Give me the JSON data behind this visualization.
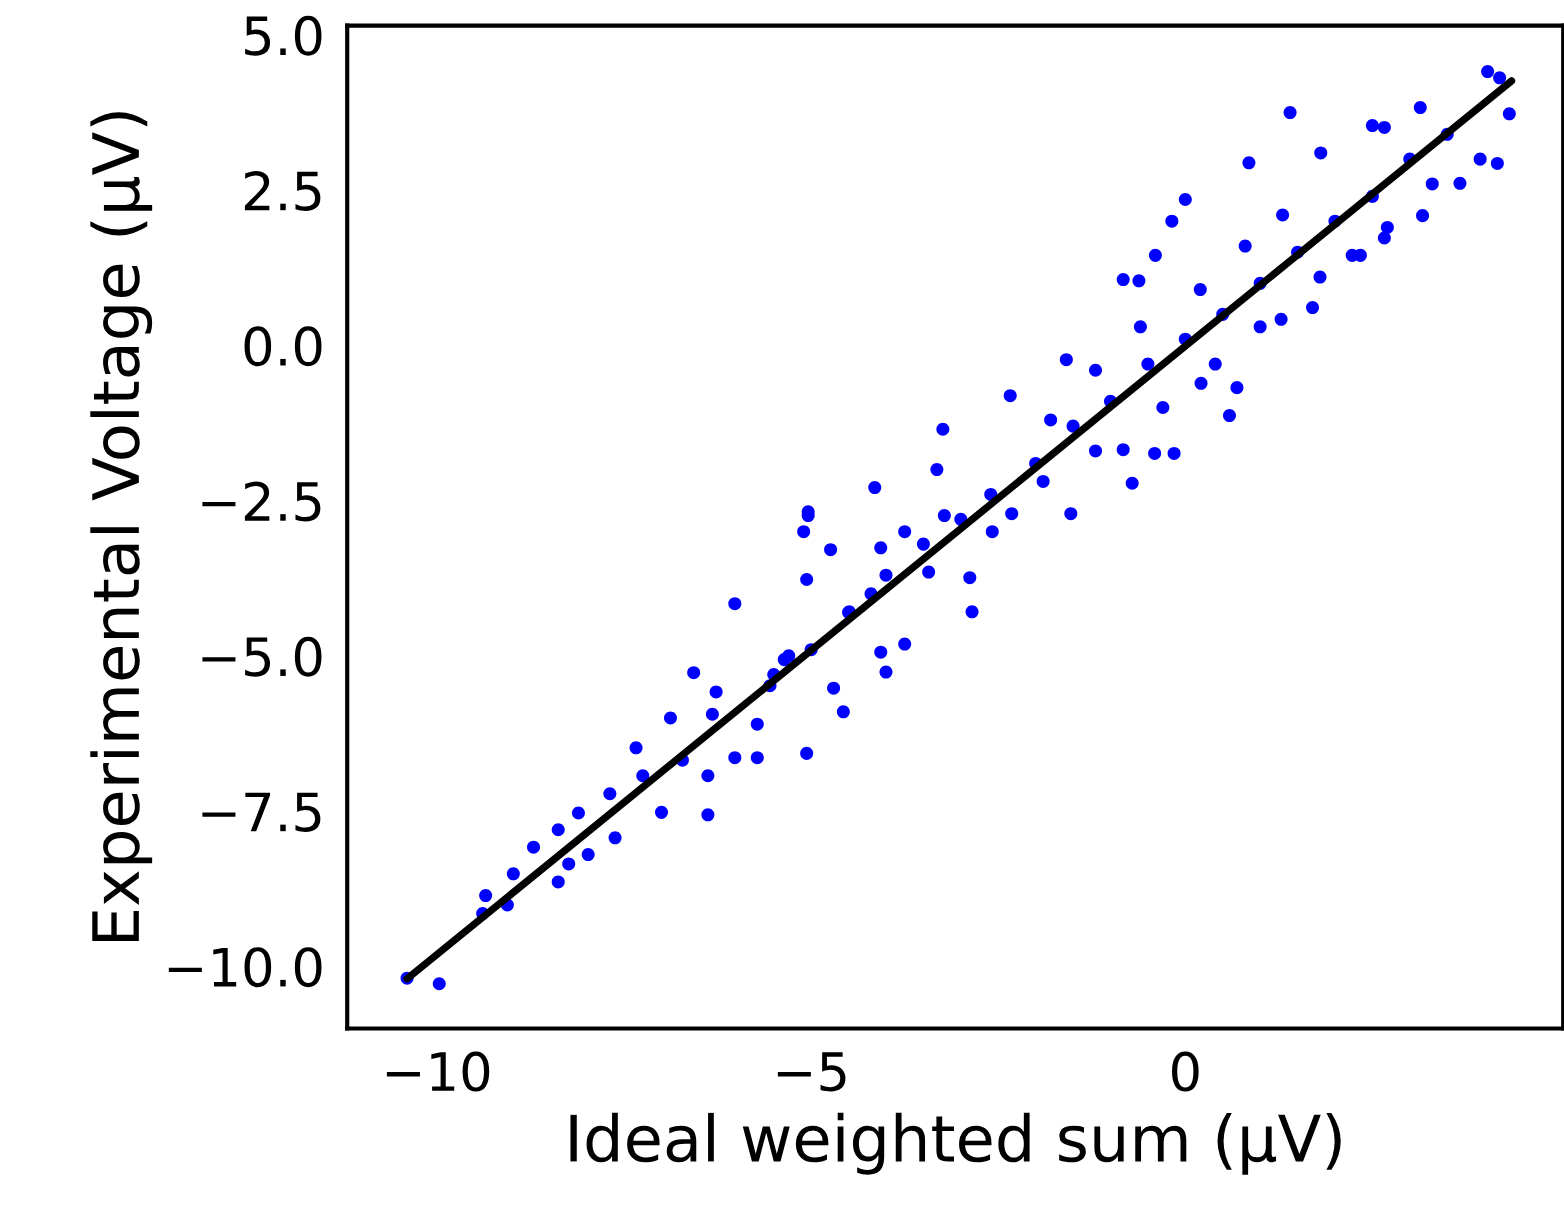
{
  "chart_data": {
    "type": "scatter",
    "xlabel": "Ideal weighted sum (μV)",
    "ylabel": "Experimental Voltage (μV)",
    "xlim": [
      -11.2,
      5.05
    ],
    "ylim": [
      -11.0,
      5.15
    ],
    "xticks": [
      {
        "value": -10,
        "label": "−10"
      },
      {
        "value": -5,
        "label": "−5"
      },
      0
    ],
    "yticks": [
      {
        "value": -10,
        "label": "−10.0"
      },
      {
        "value": -7.5,
        "label": "−7.5"
      },
      {
        "value": -5,
        "label": "−5.0"
      },
      {
        "value": -2.5,
        "label": "−2.5"
      },
      {
        "value": 0,
        "label": "0.0"
      },
      {
        "value": 2.5,
        "label": "2.5"
      },
      {
        "value": 5,
        "label": "5.0"
      }
    ],
    "grid": false,
    "legend": false,
    "marker": "circle",
    "series": [
      {
        "color": "#0000ff",
        "x": [
          -10.4,
          -9.97,
          -9.39,
          -9.35,
          -9.06,
          -8.98,
          -8.71,
          -8.38,
          -8.38,
          -8.24,
          -7.98,
          -8.11,
          -7.69,
          -7.62,
          -7.34,
          -7.25,
          -7.0,
          -6.88,
          -6.72,
          -6.57,
          -6.38,
          -6.38,
          -6.32,
          -6.27,
          -6.02,
          -6.02,
          -5.72,
          -5.72,
          -5.55,
          -5.36,
          -5.06,
          -5.06,
          -5.1,
          -5.04,
          -4.7,
          -4.57,
          -4.74,
          -4.49,
          -4.07,
          -4.0,
          -3.75,
          -3.43,
          -2.85,
          -2.88,
          -3.75,
          -4.07,
          -3.22,
          -2.58,
          -5.5,
          -5.0,
          -4.5,
          -4.0,
          -3.5,
          -3.0,
          -2.6,
          -5.3,
          -4.2,
          -5.04,
          -4.15,
          -3.24,
          -3.32,
          -2.34,
          -1.59,
          -0.83,
          -0.62,
          -0.4,
          -0.18,
          0.0,
          0.85,
          1.4,
          1.81,
          2.5,
          2.66,
          3.14,
          4.04,
          4.2,
          4.33,
          4.17,
          3.94,
          3.67,
          3.17,
          2.66,
          2.23,
          1.7,
          0.59,
          0.69,
          -0.15,
          -0.41,
          -0.71,
          -0.83,
          -1.53,
          -1.9,
          -2.32,
          0.21,
          1.28,
          2.34,
          -2.0,
          -1.5,
          -1.0,
          -0.5,
          0.0,
          0.5,
          1.0,
          1.5,
          2.0,
          2.5,
          3.0,
          3.5,
          -1.8,
          -1.2,
          -0.6,
          0.2,
          0.8,
          1.3,
          -1.2,
          -0.3,
          0.4,
          1.0,
          1.8,
          2.7,
          3.3
        ],
        "values": [
          -10.19,
          -10.28,
          -9.15,
          -8.86,
          -9.01,
          -8.51,
          -8.08,
          -8.64,
          -7.8,
          -8.35,
          -8.2,
          -7.53,
          -7.22,
          -7.93,
          -6.48,
          -6.93,
          -7.52,
          -6.0,
          -6.68,
          -5.27,
          -7.56,
          -6.93,
          -5.94,
          -5.58,
          -4.16,
          -6.64,
          -6.64,
          -6.1,
          -5.48,
          -5.06,
          -6.57,
          -3.77,
          -3.0,
          -2.68,
          -5.52,
          -5.9,
          -3.29,
          -4.29,
          -4.94,
          -5.26,
          -4.81,
          -3.65,
          -4.29,
          -3.74,
          -3.0,
          -3.26,
          -2.74,
          -3.0,
          -5.3,
          -4.9,
          -4.3,
          -3.7,
          -3.2,
          -2.8,
          -2.4,
          -5.0,
          -4.0,
          -2.74,
          -2.29,
          -1.35,
          -2.0,
          -0.81,
          -0.23,
          1.06,
          1.04,
          1.45,
          2.0,
          2.35,
          2.94,
          3.75,
          3.1,
          3.54,
          3.51,
          3.83,
          4.41,
          4.31,
          3.73,
          2.93,
          3.0,
          2.61,
          2.09,
          1.73,
          1.45,
          0.61,
          -1.13,
          -0.68,
          -1.74,
          -1.74,
          -2.22,
          -1.68,
          -2.71,
          -2.19,
          -2.71,
          -0.61,
          0.42,
          1.45,
          -1.9,
          -1.3,
          -0.9,
          -0.3,
          0.1,
          0.5,
          1.0,
          1.5,
          2.0,
          2.4,
          3.0,
          3.4,
          -1.2,
          -0.4,
          0.3,
          0.9,
          1.6,
          2.1,
          -1.7,
          -1.0,
          -0.3,
          0.3,
          1.1,
          1.9,
          2.6
        ]
      },
      {
        "type": "line",
        "color": "#000000",
        "marker": "none",
        "line_style": "solid",
        "x": [
          -10.4,
          4.36
        ],
        "values": [
          -10.2,
          4.26
        ]
      }
    ]
  }
}
